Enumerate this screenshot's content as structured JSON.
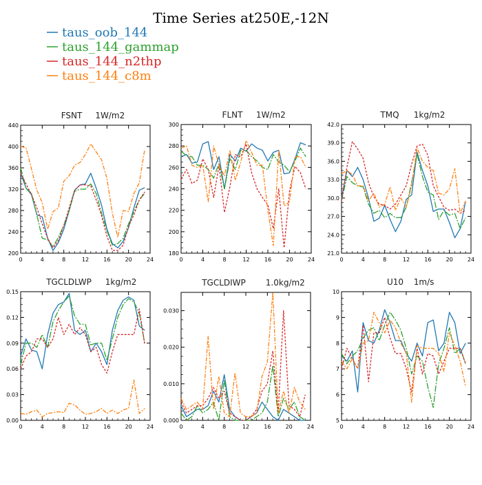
{
  "figure": {
    "title": "Time Series at250E,-12N",
    "legend": [
      {
        "label": "taus_oob_144",
        "color": "#1f77b4"
      },
      {
        "label": "taus_144_gammap",
        "color": "#2ca02c"
      },
      {
        "label": "taus_144_n2thp",
        "color": "#d62728"
      },
      {
        "label": "taus_144_c8m",
        "color": "#ff7f0e"
      }
    ]
  },
  "chart_data": [
    {
      "type": "line",
      "title": "FSNT",
      "units": "1W/m2",
      "xlim": [
        0,
        24
      ],
      "ylim": [
        200,
        440
      ],
      "xticks": [
        "0",
        "4",
        "8",
        "12",
        "16",
        "20",
        "24"
      ],
      "yticks": [
        "200",
        "240",
        "280",
        "320",
        "360",
        "400",
        "440"
      ],
      "x": [
        0,
        1,
        2,
        3,
        4,
        5,
        6,
        7,
        8,
        9,
        10,
        11,
        12,
        13,
        14,
        15,
        16,
        17,
        18,
        19,
        20,
        21,
        22,
        23
      ],
      "series": [
        {
          "name": "taus_oob_144",
          "color": "#1f77b4",
          "values": [
            350,
            322,
            310,
            272,
            268,
            228,
            205,
            220,
            245,
            280,
            318,
            328,
            330,
            350,
            322,
            290,
            245,
            218,
            210,
            222,
            248,
            285,
            318,
            323
          ]
        },
        {
          "name": "taus_144_gammap",
          "color": "#2ca02c",
          "values": [
            360,
            322,
            312,
            272,
            228,
            225,
            212,
            230,
            252,
            280,
            316,
            320,
            320,
            330,
            312,
            275,
            242,
            215,
            218,
            228,
            255,
            278,
            300,
            312
          ]
        },
        {
          "name": "taus_144_n2thp",
          "color": "#d62728",
          "values": [
            350,
            330,
            310,
            285,
            255,
            228,
            210,
            224,
            252,
            285,
            318,
            328,
            328,
            326,
            300,
            270,
            232,
            205,
            205,
            215,
            250,
            272,
            300,
            315
          ]
        },
        {
          "name": "taus_144_c8m",
          "color": "#ff7f0e",
          "values": [
            400,
            398,
            358,
            318,
            295,
            245,
            278,
            285,
            335,
            345,
            365,
            370,
            385,
            405,
            390,
            375,
            340,
            275,
            230,
            280,
            278,
            312,
            332,
            395
          ]
        }
      ]
    },
    {
      "type": "line",
      "title": "FLNT",
      "units": "1W/m2",
      "xlim": [
        0,
        24
      ],
      "ylim": [
        180,
        300
      ],
      "xticks": [
        "0",
        "4",
        "8",
        "12",
        "16",
        "20",
        "24"
      ],
      "yticks": [
        "180",
        "200",
        "220",
        "240",
        "260",
        "280",
        "300"
      ],
      "x": [
        0,
        1,
        2,
        3,
        4,
        5,
        6,
        7,
        8,
        9,
        10,
        11,
        12,
        13,
        14,
        15,
        16,
        17,
        18,
        19,
        20,
        21,
        22,
        23
      ],
      "series": [
        {
          "name": "taus_oob_144",
          "color": "#1f77b4",
          "values": [
            270,
            272,
            264,
            265,
            282,
            284,
            258,
            270,
            240,
            272,
            266,
            278,
            275,
            282,
            278,
            276,
            266,
            274,
            276,
            254,
            255,
            268,
            283,
            281
          ]
        },
        {
          "name": "taus_144_gammap",
          "color": "#2ca02c",
          "values": [
            275,
            271,
            270,
            262,
            262,
            258,
            250,
            264,
            240,
            268,
            258,
            276,
            276,
            270,
            266,
            260,
            258,
            272,
            265,
            262,
            256,
            266,
            278,
            270
          ]
        },
        {
          "name": "taus_144_n2thp",
          "color": "#d62728",
          "values": [
            249,
            258,
            245,
            248,
            268,
            258,
            232,
            262,
            218,
            242,
            272,
            270,
            282,
            255,
            240,
            232,
            225,
            203,
            240,
            185,
            238,
            261,
            255,
            240
          ]
        },
        {
          "name": "taus_144_c8m",
          "color": "#ff7f0e",
          "values": [
            278,
            280,
            262,
            260,
            262,
            228,
            280,
            262,
            252,
            276,
            248,
            265,
            285,
            274,
            262,
            262,
            220,
            187,
            276,
            224,
            228,
            270,
            270,
            260
          ]
        }
      ]
    },
    {
      "type": "line",
      "title": "TMQ",
      "units": "1kg/m2",
      "xlim": [
        0,
        24
      ],
      "ylim": [
        21.0,
        42.0
      ],
      "xticks": [
        "0",
        "4",
        "8",
        "12",
        "16",
        "20",
        "24"
      ],
      "yticks": [
        "21.0",
        "24.0",
        "27.0",
        "30.0",
        "33.0",
        "36.0",
        "39.0",
        "42.0"
      ],
      "x": [
        0,
        1,
        2,
        3,
        4,
        5,
        6,
        7,
        8,
        9,
        10,
        11,
        12,
        13,
        14,
        15,
        16,
        17,
        18,
        19,
        20,
        21,
        22,
        23
      ],
      "series": [
        {
          "name": "taus_oob_144",
          "color": "#1f77b4",
          "values": [
            30.0,
            34.5,
            33.5,
            35.0,
            33.0,
            30.0,
            26.2,
            26.7,
            28.8,
            26.5,
            24.5,
            26.2,
            29.8,
            30.5,
            37.5,
            34.5,
            32.0,
            27.8,
            28.2,
            28.2,
            26.0,
            23.5,
            25.0,
            29.5
          ]
        },
        {
          "name": "taus_144_gammap",
          "color": "#2ca02c",
          "values": [
            29.5,
            33.5,
            32.5,
            32.0,
            31.8,
            29.0,
            27.5,
            28.0,
            26.8,
            27.5,
            26.8,
            26.8,
            28.5,
            32.5,
            37.2,
            33.5,
            31.0,
            30.5,
            26.5,
            28.0,
            27.2,
            27.5,
            25.0,
            26.8
          ]
        },
        {
          "name": "taus_144_n2thp",
          "color": "#d62728",
          "values": [
            29.5,
            35.0,
            39.2,
            38.0,
            36.5,
            32.5,
            30.2,
            29.0,
            28.8,
            28.2,
            29.0,
            30.5,
            32.0,
            35.5,
            38.5,
            38.8,
            37.0,
            32.0,
            30.2,
            28.5,
            28.0,
            28.2,
            27.5,
            28.0
          ]
        },
        {
          "name": "taus_144_c8m",
          "color": "#ff7f0e",
          "values": [
            34.0,
            34.5,
            33.8,
            32.0,
            32.0,
            29.5,
            30.8,
            28.5,
            29.0,
            31.8,
            28.0,
            30.0,
            28.5,
            32.0,
            38.2,
            36.0,
            35.0,
            34.5,
            30.8,
            30.5,
            31.5,
            34.8,
            27.5,
            29.5
          ]
        }
      ]
    },
    {
      "type": "line",
      "title": "TGCLDLWP",
      "units": "1kg/m2",
      "xlim": [
        0,
        24
      ],
      "ylim": [
        0.0,
        0.15
      ],
      "xticks": [
        "0",
        "4",
        "8",
        "12",
        "16",
        "20",
        "24"
      ],
      "yticks": [
        "0.00",
        "0.03",
        "0.06",
        "0.09",
        "0.12",
        "0.15"
      ],
      "x": [
        0,
        1,
        2,
        3,
        4,
        5,
        6,
        7,
        8,
        9,
        10,
        11,
        12,
        13,
        14,
        15,
        16,
        17,
        18,
        19,
        20,
        21,
        22,
        23
      ],
      "series": [
        {
          "name": "taus_oob_144",
          "color": "#1f77b4",
          "values": [
            0.075,
            0.095,
            0.082,
            0.08,
            0.06,
            0.1,
            0.125,
            0.135,
            0.138,
            0.148,
            0.105,
            0.1,
            0.105,
            0.08,
            0.09,
            0.08,
            0.065,
            0.105,
            0.128,
            0.14,
            0.144,
            0.14,
            0.11,
            0.105
          ]
        },
        {
          "name": "taus_144_gammap",
          "color": "#2ca02c",
          "values": [
            0.065,
            0.09,
            0.09,
            0.085,
            0.1,
            0.085,
            0.115,
            0.128,
            0.138,
            0.145,
            0.122,
            0.112,
            0.112,
            0.088,
            0.09,
            0.09,
            0.07,
            0.095,
            0.12,
            0.135,
            0.142,
            0.138,
            0.125,
            0.09
          ]
        },
        {
          "name": "taus_144_n2thp",
          "color": "#d62728",
          "values": [
            0.06,
            0.075,
            0.08,
            0.095,
            0.095,
            0.085,
            0.095,
            0.12,
            0.1,
            0.112,
            0.1,
            0.108,
            0.1,
            0.08,
            0.085,
            0.065,
            0.055,
            0.08,
            0.1,
            0.1,
            0.1,
            0.1,
            0.13,
            0.088
          ]
        },
        {
          "name": "taus_144_c8m",
          "color": "#ff7f0e",
          "values": [
            0.008,
            0.007,
            0.01,
            0.012,
            0.004,
            0.008,
            0.009,
            0.01,
            0.009,
            0.02,
            0.018,
            0.012,
            0.007,
            0.008,
            0.01,
            0.014,
            0.008,
            0.012,
            0.008,
            0.012,
            0.014,
            0.047,
            0.008,
            0.014
          ]
        }
      ]
    },
    {
      "type": "line",
      "title": "TGCLDIWP",
      "units": "1.0kg/m2",
      "xlim": [
        0,
        24
      ],
      "ylim": [
        0.0,
        0.035
      ],
      "xticks": [
        "0",
        "4",
        "8",
        "12",
        "16",
        "20",
        "24"
      ],
      "yticks": [
        "0.000",
        "0.010",
        "0.020",
        "0.030"
      ],
      "x": [
        0,
        1,
        2,
        3,
        4,
        5,
        6,
        7,
        8,
        9,
        10,
        11,
        12,
        13,
        14,
        15,
        16,
        17,
        18,
        19,
        20,
        21,
        22,
        23
      ],
      "series": [
        {
          "name": "taus_oob_144",
          "color": "#1f77b4",
          "values": [
            0.004,
            0.001,
            0.002,
            0.003,
            0.003,
            0.004,
            0.008,
            0.005,
            0.0125,
            0.003,
            0.001,
            0.0,
            0.0,
            0.001,
            0.002,
            0.005,
            0.003,
            0.001,
            0.0,
            0.003,
            0.002,
            0.001,
            0.0,
            0.0
          ]
        },
        {
          "name": "taus_144_gammap",
          "color": "#2ca02c",
          "values": [
            0.002,
            0.0,
            0.001,
            0.004,
            0.002,
            0.003,
            0.005,
            0.0,
            0.011,
            0.001,
            0.0,
            0.0,
            0.0,
            0.0,
            0.001,
            0.002,
            0.005,
            0.015,
            0.001,
            0.006,
            0.003,
            0.005,
            0.001,
            0.0
          ]
        },
        {
          "name": "taus_144_n2thp",
          "color": "#d62728",
          "values": [
            0.005,
            0.002,
            0.003,
            0.004,
            0.004,
            0.006,
            0.009,
            0.006,
            0.008,
            0.002,
            0.001,
            0.0,
            0.0,
            0.001,
            0.003,
            0.008,
            0.01,
            0.019,
            0.002,
            0.03,
            0.004,
            0.003,
            0.001,
            0.007
          ]
        },
        {
          "name": "taus_144_c8m",
          "color": "#ff7f0e",
          "values": [
            0.006,
            0.003,
            0.004,
            0.005,
            0.003,
            0.023,
            0.003,
            0.012,
            0.002,
            0.001,
            0.013,
            0.002,
            0.001,
            0.001,
            0.002,
            0.012,
            0.016,
            0.035,
            0.002,
            0.008,
            0.002,
            0.009,
            0.005,
            0.003
          ]
        }
      ]
    },
    {
      "type": "line",
      "title": "U10",
      "units": "1m/s",
      "xlim": [
        0,
        24
      ],
      "ylim": [
        5,
        10
      ],
      "xticks": [
        "0",
        "4",
        "8",
        "12",
        "16",
        "20",
        "24"
      ],
      "yticks": [
        "5",
        "6",
        "7",
        "8",
        "9",
        "10"
      ],
      "x": [
        0,
        1,
        2,
        3,
        4,
        5,
        6,
        7,
        8,
        9,
        10,
        11,
        12,
        13,
        14,
        15,
        16,
        17,
        18,
        19,
        20,
        21,
        22,
        23
      ],
      "series": [
        {
          "name": "taus_oob_144",
          "color": "#1f77b4",
          "values": [
            7.5,
            7.3,
            7.7,
            6.1,
            8.8,
            8.1,
            8.0,
            8.5,
            9.3,
            8.8,
            8.1,
            8.1,
            7.6,
            7.3,
            8.0,
            7.5,
            8.8,
            8.9,
            7.7,
            8.0,
            9.2,
            8.8,
            7.6,
            8.0
          ]
        },
        {
          "name": "taus_144_gammap",
          "color": "#2ca02c",
          "values": [
            7.6,
            7.2,
            7.5,
            7.7,
            8.2,
            8.5,
            8.6,
            8.1,
            8.7,
            9.2,
            8.9,
            8.5,
            7.8,
            6.8,
            7.5,
            7.3,
            6.3,
            5.5,
            7.2,
            7.8,
            8.6,
            7.6,
            7.8,
            7.2
          ]
        },
        {
          "name": "taus_144_n2thp",
          "color": "#d62728",
          "values": [
            7.0,
            7.8,
            7.4,
            7.0,
            8.7,
            6.5,
            8.4,
            8.4,
            9.0,
            8.2,
            7.6,
            7.6,
            7.0,
            6.1,
            7.8,
            6.8,
            7.6,
            7.5,
            6.8,
            7.3,
            7.8,
            7.8,
            7.8,
            7.2
          ]
        },
        {
          "name": "taus_144_c8m",
          "color": "#ff7f0e",
          "values": [
            7.3,
            7.0,
            7.4,
            7.0,
            8.0,
            8.1,
            9.2,
            8.8,
            8.4,
            8.9,
            8.6,
            8.0,
            7.6,
            5.7,
            7.9,
            7.8,
            7.8,
            7.8,
            7.6,
            6.9,
            8.4,
            7.9,
            7.3,
            6.3
          ]
        }
      ]
    }
  ]
}
